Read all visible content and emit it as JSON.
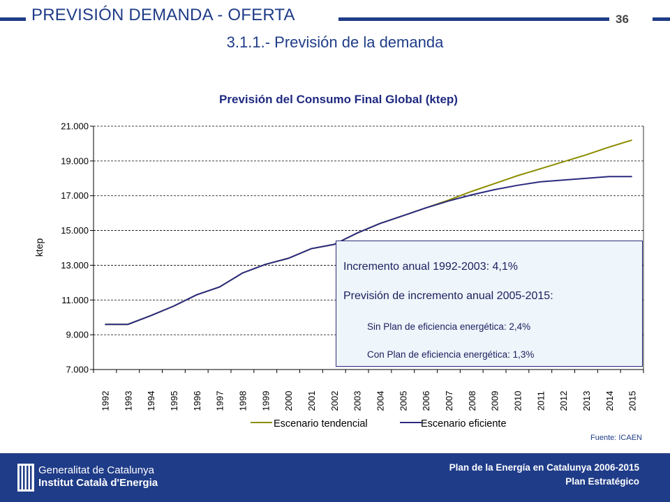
{
  "header": {
    "section_title": "PREVISIÓN DEMANDA - OFERTA",
    "page_number": "36",
    "subtitle": "3.1.1.- Previsión de la demanda",
    "accent_color": "#1f3c88"
  },
  "chart_data": {
    "type": "line",
    "title": "Previsión del Consumo Final Global (ktep)",
    "xlabel": "",
    "ylabel": "ktep",
    "ylim": [
      7000,
      21000
    ],
    "yticks": [
      "7.000",
      "9.000",
      "11.000",
      "13.000",
      "15.000",
      "17.000",
      "19.000",
      "21.000"
    ],
    "grid": "horizontal dashed",
    "legend_position": "bottom",
    "categories": [
      "1992",
      "1993",
      "1994",
      "1995",
      "1996",
      "1997",
      "1998",
      "1999",
      "2000",
      "2001",
      "2002",
      "2003",
      "2004",
      "2005",
      "2006",
      "2007",
      "2008",
      "2009",
      "2010",
      "2011",
      "2012",
      "2013",
      "2014",
      "2015"
    ],
    "series": [
      {
        "name": "Escenario tendencial",
        "color": "#8c8c00",
        "values": [
          9600,
          9600,
          10100,
          10650,
          11300,
          11750,
          12550,
          13050,
          13400,
          13950,
          14200,
          14850,
          15400,
          15850,
          16300,
          16750,
          17250,
          17700,
          18150,
          18550,
          18950,
          19350,
          19800,
          20200
        ]
      },
      {
        "name": "Escenario eficiente",
        "color": "#2a2a80",
        "values": [
          9600,
          9600,
          10100,
          10650,
          11300,
          11750,
          12550,
          13050,
          13400,
          13950,
          14200,
          14850,
          15400,
          15850,
          16300,
          16700,
          17050,
          17350,
          17600,
          17800,
          17900,
          18000,
          18100,
          18100
        ]
      }
    ],
    "annotation": {
      "line1": "Incremento anual 1992-2003: 4,1%",
      "line2": "Previsión de incremento anual 2005-2015:",
      "line3": "Sin Plan de eficiencia energética: 2,4%",
      "line4": "Con Plan de eficiencia energética: 1,3%"
    }
  },
  "source": "Fuente: ICAEN",
  "footer": {
    "org_line1": "Generalitat de Catalunya",
    "org_line2": "Institut Català d'Energia",
    "plan_line1": "Plan de la Energía en Catalunya 2006-2015",
    "plan_line2": "Plan Estratégico"
  }
}
